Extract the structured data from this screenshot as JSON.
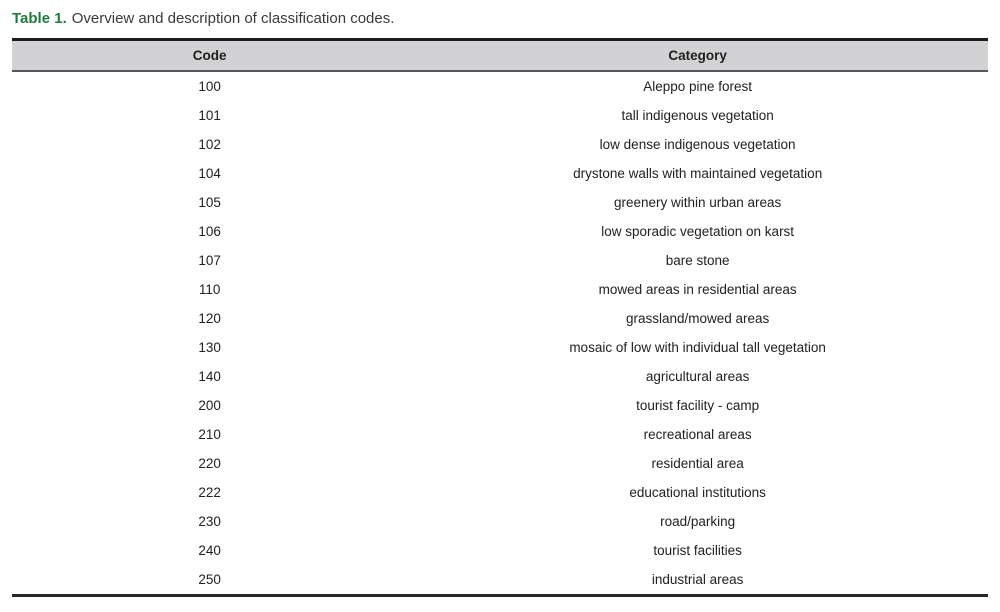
{
  "caption": {
    "label": "Table 1.",
    "text": "Overview and description of classification codes."
  },
  "colors": {
    "caption_accent_green": "#1e7b3c",
    "caption_text": "#3a3a3a",
    "header_background": "#d2d2d4",
    "table_top_border": "#1c1c1c",
    "table_bottom_border": "#26262b",
    "header_bottom_border": "#57575b",
    "body_text": "#232020",
    "page_background": "#ffffff"
  },
  "table": {
    "columns": [
      "Code",
      "Category"
    ],
    "rows": [
      [
        "100",
        "Aleppo pine forest"
      ],
      [
        "101",
        "tall indigenous vegetation"
      ],
      [
        "102",
        "low dense indigenous vegetation"
      ],
      [
        "104",
        "drystone walls with maintained vegetation"
      ],
      [
        "105",
        "greenery within urban areas"
      ],
      [
        "106",
        "low sporadic vegetation on karst"
      ],
      [
        "107",
        "bare stone"
      ],
      [
        "110",
        "mowed areas in residential areas"
      ],
      [
        "120",
        "grassland/mowed areas"
      ],
      [
        "130",
        "mosaic of low with individual tall vegetation"
      ],
      [
        "140",
        "agricultural areas"
      ],
      [
        "200",
        "tourist facility - camp"
      ],
      [
        "210",
        "recreational areas"
      ],
      [
        "220",
        "residential area"
      ],
      [
        "222",
        "educational institutions"
      ],
      [
        "230",
        "road/parking"
      ],
      [
        "240",
        "tourist facilities"
      ],
      [
        "250",
        "industrial areas"
      ]
    ]
  }
}
